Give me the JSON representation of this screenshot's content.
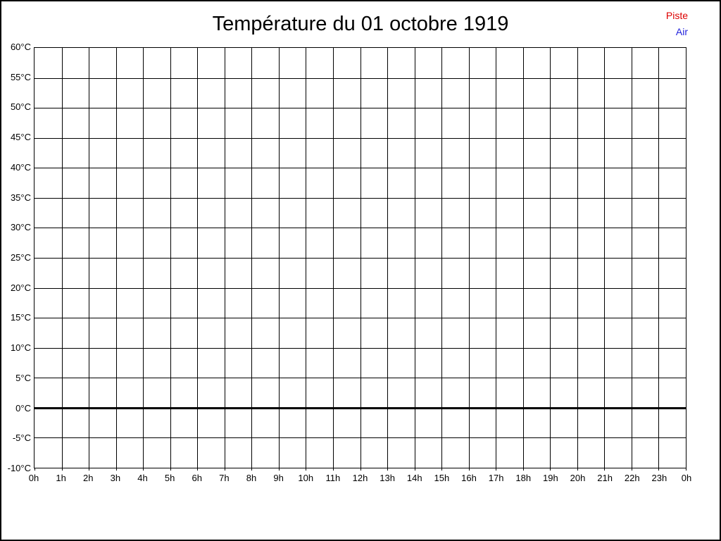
{
  "page": {
    "background": "#ffffff",
    "frame_color": "#000000"
  },
  "chart_data": {
    "type": "line",
    "title": "Température du 01 octobre 1919",
    "xlabel": "",
    "ylabel": "",
    "x_tick_labels": [
      "0h",
      "1h",
      "2h",
      "3h",
      "4h",
      "5h",
      "6h",
      "7h",
      "8h",
      "9h",
      "10h",
      "11h",
      "12h",
      "13h",
      "14h",
      "15h",
      "16h",
      "17h",
      "18h",
      "19h",
      "20h",
      "21h",
      "22h",
      "23h",
      "0h"
    ],
    "y_ticks": [
      60,
      55,
      50,
      45,
      40,
      35,
      30,
      25,
      20,
      15,
      10,
      5,
      0,
      -5,
      -10
    ],
    "y_tick_suffix": "°C",
    "ylim": [
      -10,
      60
    ],
    "x_hours": [
      0,
      24
    ],
    "grid": true,
    "grid_color": "#000000",
    "zero_line": {
      "value": 0,
      "color": "#000000",
      "thickness_px": 3
    },
    "legend_position": "top-right",
    "series": [
      {
        "name": "Piste",
        "color": "#dd0000",
        "values": []
      },
      {
        "name": "Air",
        "color": "#2222dd",
        "values": []
      }
    ]
  }
}
